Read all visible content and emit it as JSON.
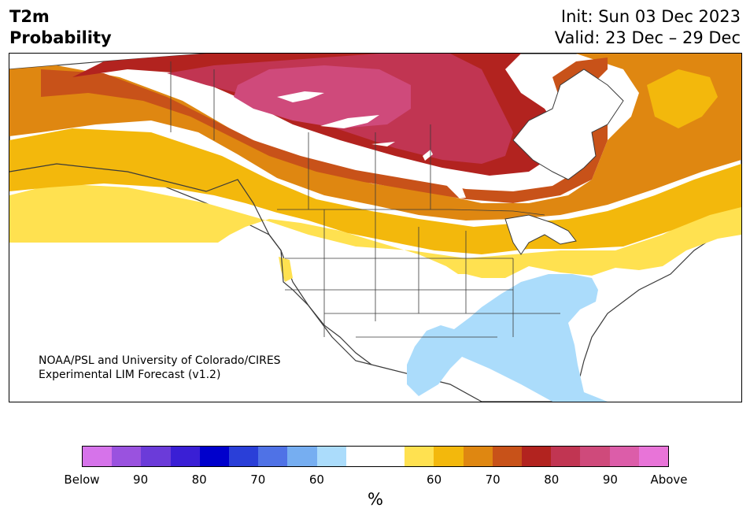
{
  "header": {
    "title_line1": "T2m",
    "title_line2": "Probability",
    "init": "Init: Sun 03 Dec 2023",
    "valid": "Valid: 23 Dec – 29 Dec"
  },
  "credit": {
    "line1": "NOAA/PSL and University of Colorado/CIRES",
    "line2": "Experimental LIM Forecast (v1.2)"
  },
  "colorbar": {
    "colors": [
      "#d673ea",
      "#9a52df",
      "#6b3bd9",
      "#3a1fd5",
      "#0000cc",
      "#2a3fd8",
      "#4f72e6",
      "#76aef1",
      "#abdcfb",
      "#ffffff",
      "#ffffff",
      "#ffe150",
      "#f3b80c",
      "#df8711",
      "#c85219",
      "#b2231f",
      "#c13552",
      "#cf4a7b",
      "#dc5da9",
      "#e874d8"
    ],
    "tick_labels": [
      "Below",
      "90",
      "80",
      "70",
      "60",
      "60",
      "70",
      "80",
      "90",
      "Above"
    ],
    "unit": "%"
  },
  "map_colors": {
    "background": "#ffffff",
    "lakes": "#ffffff",
    "borders": "#3a3a3a"
  }
}
